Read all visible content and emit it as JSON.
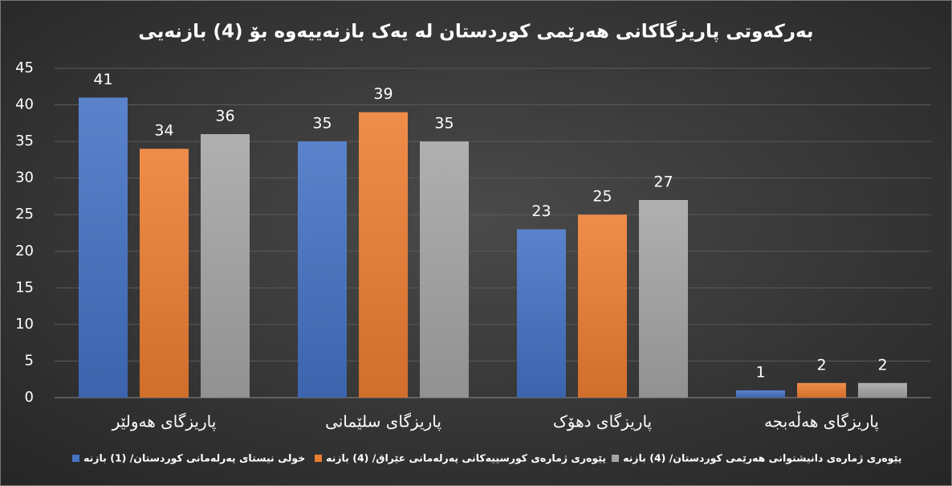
{
  "chart_data": {
    "type": "bar",
    "title": "بەرکەوتی پاریزگاکانی هەرێمی کوردستان لە یەک بازنەییەوە بۆ (4) بازنەیی",
    "categories": [
      "پاریزگای هەولێر",
      "پاریزگای سلێمانی",
      "پاریزگای دهۆک",
      "پاریزگای هەڵەبجە"
    ],
    "series": [
      {
        "name": "خولی نیستای پەرلەمانی کوردستان/ (1) بازنە",
        "color": "#4472c4",
        "values": [
          41,
          35,
          23,
          1
        ]
      },
      {
        "name": "پێوەری ژمارەی کورسییەکانی پەرلەمانی عێراق/ (4) بازنە",
        "color": "#ed7d31",
        "values": [
          34,
          39,
          25,
          2
        ]
      },
      {
        "name": "پێوەری  ژمارەی دانیشتوانی هەرێمی  کوردستان/ (4) بازنە",
        "color": "#a5a5a5",
        "values": [
          36,
          35,
          27,
          2
        ]
      }
    ],
    "ylim": [
      0,
      45
    ],
    "yticks": [
      0,
      5,
      10,
      15,
      20,
      25,
      30,
      35,
      40,
      45
    ],
    "grid": true,
    "legend": "bottom"
  }
}
